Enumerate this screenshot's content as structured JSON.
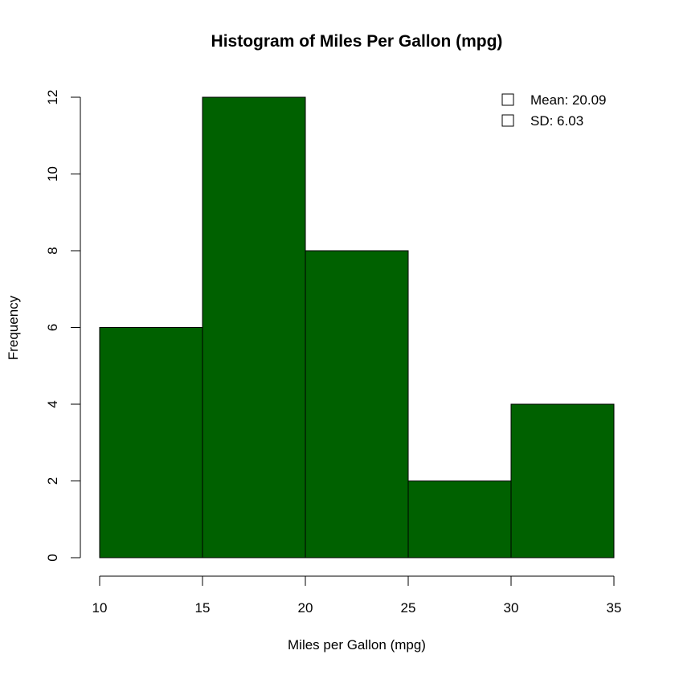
{
  "chart_data": {
    "type": "bar",
    "title": "Histogram of Miles Per Gallon (mpg)",
    "xlabel": "Miles per Gallon (mpg)",
    "ylabel": "Frequency",
    "bins": [
      {
        "from": 10,
        "to": 15,
        "count": 6
      },
      {
        "from": 15,
        "to": 20,
        "count": 12
      },
      {
        "from": 20,
        "to": 25,
        "count": 8
      },
      {
        "from": 25,
        "to": 30,
        "count": 2
      },
      {
        "from": 30,
        "to": 35,
        "count": 4
      }
    ],
    "xlim": [
      10,
      35
    ],
    "ylim": [
      0,
      12
    ],
    "xticks": [
      10,
      15,
      20,
      25,
      30,
      35
    ],
    "yticks": [
      0,
      2,
      4,
      6,
      8,
      10,
      12
    ],
    "bar_color": "#006100",
    "grid": false,
    "legend": {
      "position": "top-right",
      "items": [
        "Mean: 20.09",
        "SD: 6.03"
      ]
    }
  }
}
